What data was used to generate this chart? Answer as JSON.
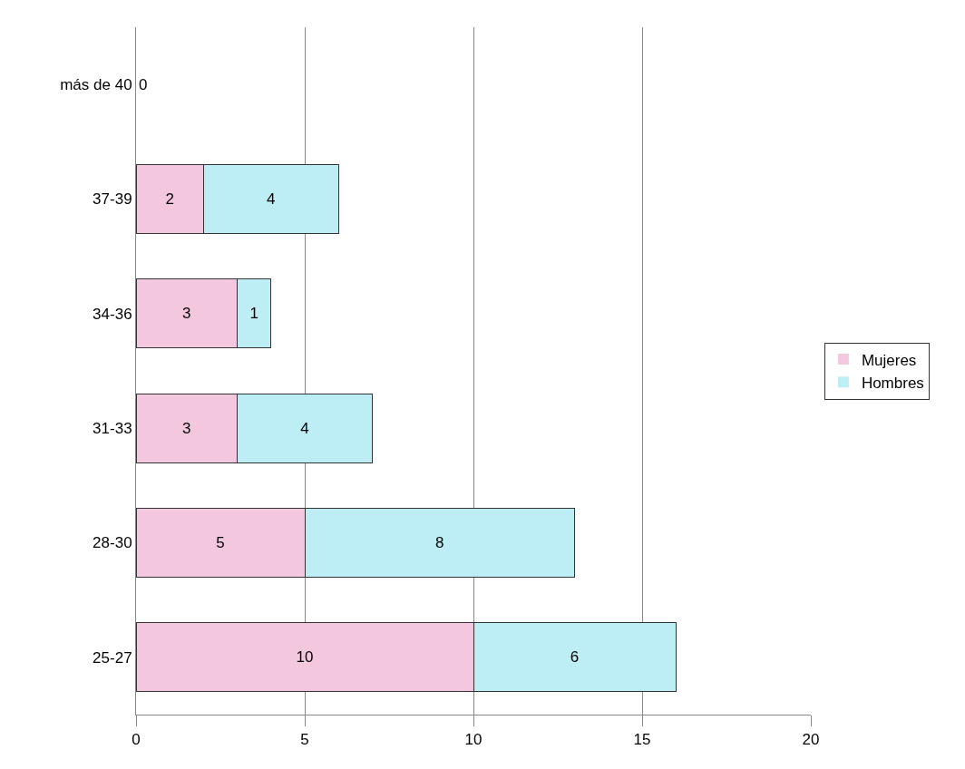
{
  "chart_data": {
    "type": "bar",
    "orientation": "horizontal",
    "stacked": true,
    "categories": [
      "más de 40",
      "37-39",
      "34-36",
      "31-33",
      "28-30",
      "25-27"
    ],
    "series": [
      {
        "name": "Mujeres",
        "color": "#f3c8de",
        "values": [
          0,
          2,
          3,
          3,
          5,
          10
        ],
        "value_labels": [
          "0",
          "2",
          "3",
          "3",
          "5",
          "10"
        ]
      },
      {
        "name": "Hombres",
        "color": "#bdeef6",
        "values": [
          0,
          4,
          1,
          4,
          8,
          6
        ],
        "value_labels": [
          null,
          "4",
          "1",
          "4",
          "8",
          "6"
        ]
      }
    ],
    "xlim": [
      0,
      20
    ],
    "xticks": [
      0,
      5,
      10,
      15,
      20
    ],
    "grid": "x",
    "legend": "right"
  }
}
